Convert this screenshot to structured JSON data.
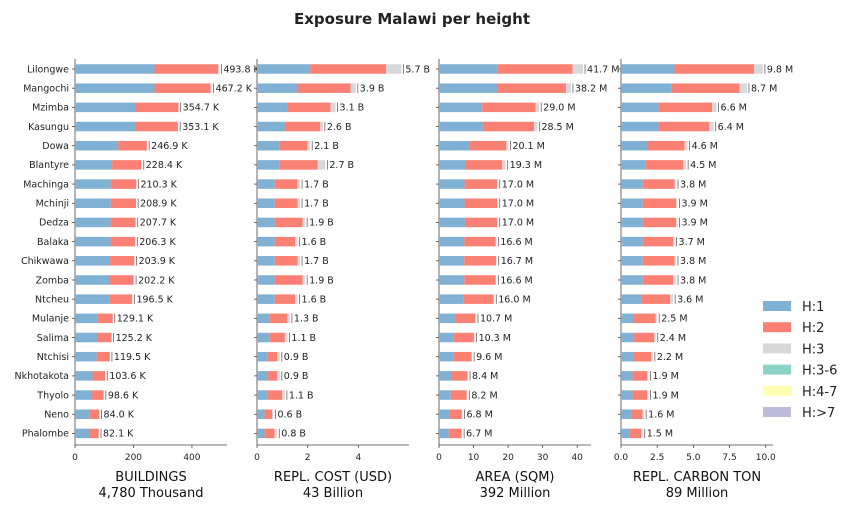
{
  "title": "Exposure Malawi per height",
  "legend": {
    "placement": "right",
    "items": [
      {
        "name": "H:1",
        "color": "#80b0d3"
      },
      {
        "name": "H:2",
        "color": "#f98072"
      },
      {
        "name": "H:3",
        "color": "#d8d8d8"
      },
      {
        "name": "H:3-6",
        "color": "#8dd3c7"
      },
      {
        "name": "H:4-7",
        "color": "#ffffb3"
      },
      {
        "name": "H:>7",
        "color": "#bebada"
      }
    ]
  },
  "chart_data": [
    {
      "type": "bar",
      "orientation": "horizontal",
      "stacked": true,
      "xlabel": "BUILDINGS",
      "xlabel2": "4,780 Thousand",
      "xlim": [
        0,
        520
      ],
      "xticks": [
        {
          "v": 0,
          "t": "0"
        },
        {
          "v": 200,
          "t": "200"
        },
        {
          "v": 400,
          "t": "400"
        }
      ],
      "categories": [
        "Lilongwe",
        "Mangochi",
        "Mzimba",
        "Kasungu",
        "Dowa",
        "Blantyre",
        "Machinga",
        "Mchinji",
        "Dedza",
        "Balaka",
        "Chikwawa",
        "Zomba",
        "Ntcheu",
        "Mulanje",
        "Salima",
        "Ntchisi",
        "Nkhotakota",
        "Thyolo",
        "Neno",
        "Phalombe"
      ],
      "series": [
        {
          "name": "H:1",
          "values": [
            272,
            272,
            207,
            207,
            148,
            127,
            122,
            122,
            122,
            122,
            120,
            118,
            117,
            78,
            75,
            74,
            60,
            55,
            50,
            48
          ]
        },
        {
          "name": "H:2",
          "values": [
            218,
            192,
            147,
            145,
            98,
            100,
            88,
            87,
            85,
            84,
            83,
            83,
            79,
            51,
            50,
            45,
            43,
            43,
            33,
            33
          ]
        },
        {
          "name": "H:3",
          "values": [
            3.8,
            3.2,
            0.7,
            1.1,
            0.9,
            1.4,
            0.2,
            0.2,
            0.7,
            0.2,
            0.9,
            1.2,
            0.5,
            0.1,
            0.2,
            0.5,
            0.6,
            0.6,
            1,
            1.1
          ]
        }
      ],
      "labels": [
        "493.8 K",
        "467.2 K",
        "354.7 K",
        "353.1 K",
        "246.9 K",
        "228.4 K",
        "210.3 K",
        "208.9 K",
        "207.7 K",
        "206.3 K",
        "203.9 K",
        "202.2 K",
        "196.5 K",
        "129.1 K",
        "125.2 K",
        "119.5 K",
        "103.6 K",
        "98.6 K",
        "84.0 K",
        "82.1 K"
      ]
    },
    {
      "type": "bar",
      "orientation": "horizontal",
      "stacked": true,
      "xlabel": "REPL. COST (USD)",
      "xlabel2": "43 Billion",
      "xlim": [
        0,
        6.0
      ],
      "xticks": [
        {
          "v": 0,
          "t": "0"
        },
        {
          "v": 2,
          "t": "2"
        },
        {
          "v": 4,
          "t": "4"
        }
      ],
      "series": [
        {
          "name": "H:1",
          "values": [
            2.1,
            1.6,
            1.2,
            1.1,
            0.9,
            0.9,
            0.7,
            0.7,
            0.7,
            0.7,
            0.7,
            0.7,
            0.7,
            0.5,
            0.5,
            0.4,
            0.4,
            0.4,
            0.3,
            0.3
          ]
        },
        {
          "name": "H:2",
          "values": [
            3.0,
            2.1,
            1.7,
            1.4,
            1.1,
            1.5,
            0.9,
            0.9,
            1.1,
            0.8,
            0.9,
            1.1,
            0.8,
            0.7,
            0.6,
            0.4,
            0.4,
            0.6,
            0.3,
            0.4
          ]
        },
        {
          "name": "H:3",
          "values": [
            0.6,
            0.2,
            0.2,
            0.1,
            0.1,
            0.3,
            0.1,
            0.1,
            0.1,
            0.1,
            0.1,
            0.1,
            0.1,
            0.1,
            0.1,
            0.1,
            0.1,
            0.1,
            0.05,
            0.1
          ]
        }
      ],
      "labels": [
        "5.7 B",
        "3.9 B",
        "3.1 B",
        "2.6 B",
        "2.1 B",
        "2.7 B",
        "1.7 B",
        "1.7 B",
        "1.9 B",
        "1.6 B",
        "1.7 B",
        "1.9 B",
        "1.6 B",
        "1.3 B",
        "1.1 B",
        "0.9 B",
        "0.9 B",
        "1.1 B",
        "0.6 B",
        "0.8 B"
      ]
    },
    {
      "type": "bar",
      "orientation": "horizontal",
      "stacked": true,
      "xlabel": "AREA (SQM)",
      "xlabel2": "392 Million",
      "xlim": [
        0,
        44
      ],
      "xticks": [
        {
          "v": 0,
          "t": "0"
        },
        {
          "v": 10,
          "t": "10"
        },
        {
          "v": 20,
          "t": "20"
        },
        {
          "v": 30,
          "t": "30"
        },
        {
          "v": 40,
          "t": "40"
        }
      ],
      "series": [
        {
          "name": "H:1",
          "values": [
            17.0,
            16.8,
            12.5,
            12.7,
            8.8,
            7.8,
            7.4,
            7.4,
            7.5,
            7.3,
            7.3,
            7.3,
            7.0,
            4.6,
            4.3,
            4.3,
            3.6,
            3.4,
            3.0,
            2.8
          ]
        },
        {
          "name": "H:2",
          "values": [
            21.7,
            20.0,
            15.5,
            14.8,
            10.7,
            10.5,
            9.4,
            9.4,
            9.3,
            9.1,
            9.2,
            9.1,
            8.8,
            5.9,
            5.8,
            5.1,
            4.6,
            4.6,
            3.6,
            3.7
          ]
        },
        {
          "name": "H:3",
          "values": [
            3.0,
            1.4,
            1.0,
            1.0,
            0.6,
            1.0,
            0.2,
            0.2,
            0.2,
            0.2,
            0.2,
            0.2,
            0.2,
            0.2,
            0.2,
            0.2,
            0.2,
            0.2,
            0.2,
            0.2
          ]
        }
      ],
      "labels": [
        "41.7 M",
        "38.2 M",
        "29.0 M",
        "28.5 M",
        "20.1 M",
        "19.3 M",
        "17.0 M",
        "17.0 M",
        "17.0 M",
        "16.6 M",
        "16.7 M",
        "16.6 M",
        "16.0 M",
        "10.7 M",
        "10.3 M",
        "9.6 M",
        "8.4 M",
        "8.2 M",
        "6.8 M",
        "6.7 M"
      ]
    },
    {
      "type": "bar",
      "orientation": "horizontal",
      "stacked": true,
      "xlabel": "REPL. CARBON TON",
      "xlabel2": "89 Million",
      "xlim": [
        0,
        10.5
      ],
      "xticks": [
        {
          "v": 0,
          "t": "0.0"
        },
        {
          "v": 2.5,
          "t": "2.5"
        },
        {
          "v": 5,
          "t": "5.0"
        },
        {
          "v": 7.5,
          "t": "7.5"
        },
        {
          "v": 10,
          "t": "10.0"
        }
      ],
      "series": [
        {
          "name": "H:1",
          "values": [
            3.7,
            3.5,
            2.6,
            2.6,
            1.8,
            1.7,
            1.5,
            1.5,
            1.5,
            1.5,
            1.5,
            1.5,
            1.4,
            0.9,
            0.9,
            0.9,
            0.8,
            0.8,
            0.7,
            0.6
          ]
        },
        {
          "name": "H:2",
          "values": [
            5.5,
            4.7,
            3.7,
            3.5,
            2.6,
            2.6,
            2.2,
            2.3,
            2.3,
            2.1,
            2.2,
            2.1,
            2.0,
            1.5,
            1.4,
            1.2,
            1.0,
            1.0,
            0.8,
            0.8
          ]
        },
        {
          "name": "H:3",
          "values": [
            0.6,
            0.5,
            0.3,
            0.3,
            0.2,
            0.2,
            0.1,
            0.1,
            0.1,
            0.1,
            0.1,
            0.2,
            0.2,
            0.1,
            0.1,
            0.1,
            0.1,
            0.1,
            0.1,
            0.1
          ]
        }
      ],
      "labels": [
        "9.8 M",
        "8.7 M",
        "6.6 M",
        "6.4 M",
        "4.6 M",
        "4.5 M",
        "3.8 M",
        "3.9 M",
        "3.9 M",
        "3.7 M",
        "3.8 M",
        "3.8 M",
        "3.6 M",
        "2.5 M",
        "2.4 M",
        "2.2 M",
        "1.9 M",
        "1.9 M",
        "1.6 M",
        "1.5 M"
      ]
    }
  ]
}
